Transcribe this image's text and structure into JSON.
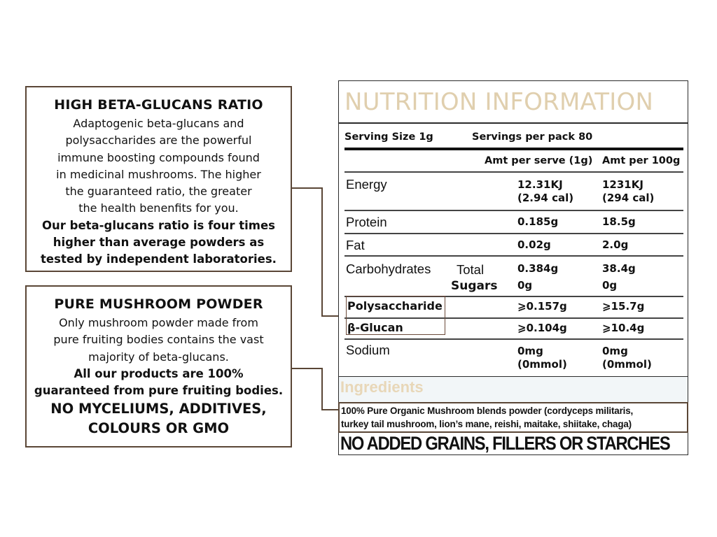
{
  "left_panel": {
    "box1": {
      "heading": "HIGH BETA-GLUCANS RATIO",
      "lines": [
        "Adaptogenic beta-glucans and",
        "polysaccharides are the powerful",
        "immune boosting compounds found",
        "in medicinal mushrooms. The higher",
        "the guaranteed ratio, the greater",
        "the health benenfits for you."
      ],
      "bold_lines": [
        "Our beta-glucans ratio is four times",
        "higher than average powders as",
        "tested by independent laboratories."
      ]
    },
    "box2": {
      "heading": "PURE MUSHROOM POWDER",
      "lines": [
        "Only mushroom powder made from",
        "pure fruiting bodies contains the vast",
        "majority of beta-glucans."
      ],
      "bold_lines": [
        "All our products are 100%",
        "guaranteed from pure fruiting bodies."
      ],
      "caps_lines": [
        "NO MYCELIUMS, ADDITIVES,",
        "COLOURS OR GMO"
      ]
    }
  },
  "nutrition": {
    "title": "NUTRITION INFORMATION",
    "serving_size": "Serving Size 1g",
    "servings_per_pack": "Servings per  pack 80",
    "col_serve": "Amt per serve (1g)",
    "col_100g": "Amt per 100g",
    "rows": {
      "energy": {
        "label": "Energy",
        "serve": [
          "12.31KJ",
          "(2.94 cal)"
        ],
        "per100": [
          "1231KJ",
          "(294 cal)"
        ]
      },
      "protein": {
        "label": "Protein",
        "serve": "0.185g",
        "per100": "18.5g"
      },
      "fat": {
        "label": "Fat",
        "serve": "0.02g",
        "per100": "2.0g"
      },
      "carbs": {
        "label": "Carbohydrates",
        "total_label": "Total",
        "sugars_label": "Sugars",
        "serve": [
          "0.384g",
          "0g"
        ],
        "per100": [
          "38.4g",
          "0g"
        ]
      },
      "polysaccharide": {
        "label": "Polysaccharide",
        "serve": "⩾0.157g",
        "per100": "⩾15.7g"
      },
      "beta_glucan": {
        "label": "β-Glucan",
        "serve": "⩾0.104g",
        "per100": "⩾10.4g"
      },
      "sodium": {
        "label": "Sodium",
        "serve": [
          "0mg",
          "(0mmol)"
        ],
        "per100": [
          "0mg",
          "(0mmol)"
        ]
      }
    }
  },
  "ingredients": {
    "title": "Ingredients",
    "lines": [
      "100% Pure Organic Mushroom blends powder (cordyceps militaris,",
      "turkey tail mushroom, lion’s mane, reishi, maitake, shiitake, chaga)"
    ],
    "footer": "NO ADDED GRAINS, FILLERS OR STARCHES"
  },
  "colors": {
    "border_brown": "#5a4636",
    "title_beige": "#e0cfae",
    "ingredients_bg": "#f2f6f8"
  }
}
